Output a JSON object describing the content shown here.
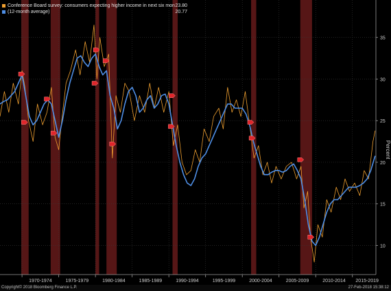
{
  "chart_data": {
    "type": "line",
    "title": "",
    "xlabel": "",
    "ylabel": "Percent",
    "ylim": [
      6.5,
      39.5
    ],
    "xlim": [
      1967.0,
      2018.2
    ],
    "yticks": [
      10,
      15,
      20,
      25,
      30,
      35
    ],
    "xtick_labels": [
      {
        "label": "1970-1974",
        "x": 1972.5
      },
      {
        "label": "1975-1979",
        "x": 1977.5
      },
      {
        "label": "1980-1984",
        "x": 1982.5
      },
      {
        "label": "1985-1989",
        "x": 1987.5
      },
      {
        "label": "1990-1994",
        "x": 1992.5
      },
      {
        "label": "1995-1999",
        "x": 1997.5
      },
      {
        "label": "2000-2004",
        "x": 2002.5
      },
      {
        "label": "2005-2009",
        "x": 2007.5
      },
      {
        "label": "2010-2014",
        "x": 2012.5
      },
      {
        "label": "2015-2019",
        "x": 2017.0
      }
    ],
    "xtick_boundaries": [
      1970,
      1975,
      1980,
      1985,
      1990,
      1995,
      2000,
      2005,
      2010,
      2015
    ],
    "recessions": [
      [
        1969.9,
        1970.9
      ],
      [
        1973.9,
        1975.2
      ],
      [
        1980.0,
        1980.5
      ],
      [
        1981.5,
        1982.9
      ],
      [
        1990.5,
        1991.2
      ],
      [
        2001.2,
        2001.9
      ],
      [
        2007.9,
        2009.5
      ]
    ],
    "series": [
      {
        "name": "Conference Board survey: consumers expecting higher income in next six months",
        "color": "#f0a030",
        "last_value": "23.80",
        "x": [
          1967.0,
          1967.6,
          1968.2,
          1968.8,
          1969.5,
          1970.0,
          1970.4,
          1970.9,
          1971.5,
          1972.1,
          1972.8,
          1973.4,
          1974.0,
          1974.5,
          1975.0,
          1975.4,
          1976.0,
          1976.6,
          1977.3,
          1977.9,
          1978.6,
          1979.2,
          1979.8,
          1980.2,
          1980.6,
          1981.2,
          1981.8,
          1982.3,
          1982.8,
          1983.4,
          1984.0,
          1984.6,
          1985.3,
          1986.0,
          1986.7,
          1987.4,
          1988.0,
          1988.6,
          1989.3,
          1990.0,
          1990.6,
          1991.2,
          1991.8,
          1992.4,
          1993.0,
          1993.6,
          1994.2,
          1994.8,
          1995.5,
          1996.1,
          1996.8,
          1997.4,
          1998.0,
          1998.6,
          1999.2,
          1999.8,
          2000.4,
          2001.0,
          2001.6,
          2002.2,
          2002.8,
          2003.4,
          2004.0,
          2004.6,
          2005.3,
          2006.0,
          2006.7,
          2007.4,
          2008.0,
          2008.4,
          2008.9,
          2009.3,
          2009.8,
          2010.3,
          2010.9,
          2011.5,
          2012.1,
          2012.8,
          2013.4,
          2014.0,
          2014.6,
          2015.3,
          2016.0,
          2016.6,
          2017.2,
          2017.8,
          2018.1
        ],
        "values": [
          25.5,
          28.5,
          26.0,
          29.5,
          27.0,
          31.0,
          29.0,
          25.0,
          22.5,
          27.0,
          24.5,
          26.0,
          29.0,
          23.0,
          21.5,
          25.0,
          29.5,
          31.0,
          33.5,
          30.5,
          34.5,
          32.0,
          36.5,
          30.0,
          35.0,
          31.5,
          33.0,
          20.5,
          28.0,
          26.0,
          29.5,
          28.5,
          25.0,
          28.0,
          26.0,
          29.5,
          26.5,
          29.0,
          26.0,
          28.5,
          22.0,
          24.5,
          20.0,
          18.5,
          19.0,
          21.5,
          20.0,
          24.0,
          22.5,
          25.5,
          26.5,
          24.0,
          29.0,
          26.0,
          27.5,
          25.5,
          28.5,
          24.5,
          20.5,
          22.0,
          18.5,
          20.0,
          17.5,
          19.5,
          18.0,
          19.5,
          20.0,
          18.0,
          19.5,
          14.5,
          16.5,
          11.0,
          8.0,
          12.5,
          11.0,
          15.5,
          14.0,
          17.0,
          15.5,
          18.0,
          16.5,
          17.5,
          16.0,
          19.0,
          18.0,
          22.5,
          23.8
        ]
      },
      {
        "name": "(12-month average)",
        "color": "#4f8fe6",
        "last_value": "20.77",
        "x": [
          1967.0,
          1967.5,
          1968.0,
          1968.5,
          1969.0,
          1969.5,
          1970.0,
          1970.5,
          1971.0,
          1971.5,
          1972.0,
          1972.5,
          1973.0,
          1973.5,
          1974.0,
          1974.5,
          1975.0,
          1975.5,
          1976.0,
          1976.5,
          1977.0,
          1977.5,
          1978.0,
          1978.5,
          1979.0,
          1979.5,
          1980.0,
          1980.5,
          1981.0,
          1981.5,
          1982.0,
          1982.5,
          1983.0,
          1983.5,
          1984.0,
          1984.5,
          1985.0,
          1985.5,
          1986.0,
          1986.5,
          1987.0,
          1987.5,
          1988.0,
          1988.5,
          1989.0,
          1989.5,
          1990.0,
          1990.5,
          1991.0,
          1991.5,
          1992.0,
          1992.5,
          1993.0,
          1993.5,
          1994.0,
          1994.5,
          1995.0,
          1995.5,
          1996.0,
          1996.5,
          1997.0,
          1997.5,
          1998.0,
          1998.5,
          1999.0,
          1999.5,
          2000.0,
          2000.5,
          2001.0,
          2001.5,
          2002.0,
          2002.5,
          2003.0,
          2003.5,
          2004.0,
          2004.5,
          2005.0,
          2005.5,
          2006.0,
          2006.5,
          2007.0,
          2007.5,
          2008.0,
          2008.5,
          2009.0,
          2009.5,
          2010.0,
          2010.5,
          2011.0,
          2011.5,
          2012.0,
          2012.5,
          2013.0,
          2013.5,
          2014.0,
          2014.5,
          2015.0,
          2015.5,
          2016.0,
          2016.5,
          2017.0,
          2017.5,
          2018.0,
          2018.1
        ],
        "values": [
          27.0,
          27.3,
          27.5,
          28.0,
          28.5,
          29.5,
          30.5,
          28.0,
          25.5,
          24.5,
          25.0,
          26.0,
          27.0,
          27.5,
          27.0,
          25.0,
          23.0,
          25.0,
          27.5,
          29.5,
          31.0,
          32.5,
          32.8,
          32.0,
          31.5,
          32.5,
          33.0,
          31.5,
          30.5,
          31.0,
          28.0,
          26.5,
          24.0,
          25.0,
          27.0,
          28.5,
          29.0,
          28.0,
          26.0,
          26.5,
          27.5,
          28.0,
          26.5,
          27.0,
          28.0,
          28.2,
          27.0,
          24.5,
          22.0,
          20.0,
          18.5,
          17.5,
          17.2,
          18.0,
          19.5,
          20.5,
          21.0,
          22.0,
          23.0,
          24.0,
          25.0,
          26.0,
          27.0,
          27.0,
          26.5,
          26.5,
          26.5,
          25.8,
          24.5,
          22.5,
          21.0,
          19.5,
          18.5,
          18.5,
          18.8,
          19.0,
          19.0,
          18.8,
          19.0,
          19.5,
          19.8,
          19.0,
          18.0,
          15.5,
          12.5,
          10.5,
          10.0,
          11.0,
          12.5,
          14.0,
          15.0,
          15.5,
          15.5,
          16.0,
          16.5,
          17.0,
          17.0,
          17.0,
          17.2,
          17.5,
          18.0,
          19.0,
          20.5,
          20.77
        ]
      }
    ],
    "markers": [
      {
        "x": 1969.9,
        "y": 30.6
      },
      {
        "x": 1970.3,
        "y": 24.8
      },
      {
        "x": 1973.4,
        "y": 27.6
      },
      {
        "x": 1974.3,
        "y": 23.5
      },
      {
        "x": 1979.9,
        "y": 29.5
      },
      {
        "x": 1980.1,
        "y": 33.5
      },
      {
        "x": 1981.4,
        "y": 32.2
      },
      {
        "x": 1982.3,
        "y": 22.2
      },
      {
        "x": 1990.4,
        "y": 28.0
      },
      {
        "x": 1990.3,
        "y": 24.3
      },
      {
        "x": 2001.1,
        "y": 24.8
      },
      {
        "x": 2001.3,
        "y": 22.9
      },
      {
        "x": 2007.9,
        "y": 20.3
      },
      {
        "x": 2009.3,
        "y": 11.0
      }
    ]
  },
  "legend": {
    "item1_label": "Conference Board survey: consumers expecting higher income in next six months",
    "item1_value": "23.80",
    "item1_color": "#f0a030",
    "item2_label": "(12-month average)",
    "item2_value": "20.77",
    "item2_color": "#4f8fe6"
  },
  "footer": {
    "copyright": "Copyright© 2018 Bloomberg Finance L.P.",
    "timestamp": "27-Feb-2018 15:38:12"
  }
}
